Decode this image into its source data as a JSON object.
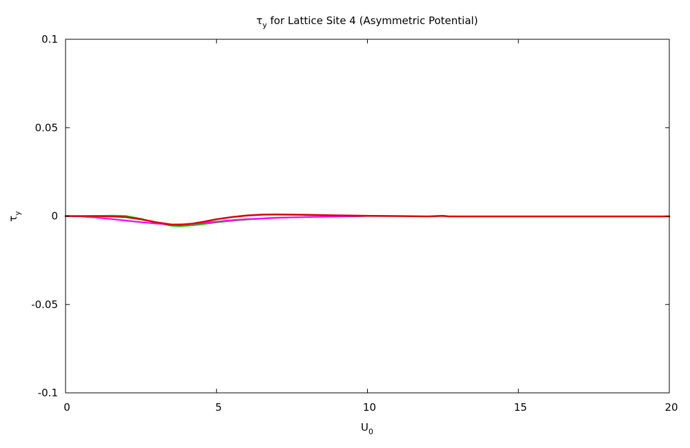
{
  "chart_data": {
    "type": "line",
    "title": {
      "main": "τ",
      "sub": "y",
      "rest": " for Lattice Site 4 (Asymmetric Potential)"
    },
    "xlabel": {
      "main": "U",
      "sub": "0"
    },
    "ylabel": {
      "main": "τ",
      "sub": "y"
    },
    "xlim": [
      0,
      20
    ],
    "ylim": [
      -0.1,
      0.1
    ],
    "xticks": [
      0,
      5,
      10,
      15,
      20
    ],
    "xtick_labels": [
      "0",
      "5",
      "10",
      "15",
      "20"
    ],
    "yticks": [
      0.1,
      0.05,
      0,
      -0.05,
      -0.1
    ],
    "ytick_labels": [
      "0.1",
      "0.05",
      "0",
      "-0.05",
      "-0.1"
    ],
    "grid": false,
    "series": [
      {
        "color": "#00cc00",
        "x": [
          0,
          0.5,
          1.0,
          1.5,
          2.0,
          2.5,
          3.0,
          3.5,
          3.8,
          4.2,
          4.6,
          5.0,
          5.5,
          6.0,
          7.0,
          8.0,
          9.0,
          10.0
        ],
        "y": [
          0,
          0,
          0.0001,
          0.0003,
          0.0001,
          -0.0015,
          -0.0038,
          -0.0055,
          -0.0057,
          -0.0053,
          -0.0045,
          -0.0036,
          -0.0027,
          -0.002,
          -0.001,
          -0.0005,
          -0.0002,
          0
        ]
      },
      {
        "color": "#6a5acd",
        "x": [
          0,
          0.5,
          1.0,
          1.5,
          2.0,
          2.5,
          3.0,
          3.5,
          4.0,
          4.5,
          5.0,
          5.5,
          6.0,
          7.0,
          8.0,
          9.0,
          10.0
        ],
        "y": [
          0,
          -0.0002,
          -0.0008,
          -0.0016,
          -0.0025,
          -0.0034,
          -0.0042,
          -0.0047,
          -0.0046,
          -0.004,
          -0.0031,
          -0.0023,
          -0.0017,
          -0.0009,
          -0.0005,
          -0.0002,
          0
        ]
      },
      {
        "color": "#ff00ff",
        "x": [
          0,
          0.5,
          1.0,
          1.5,
          2.0,
          2.5,
          3.0,
          3.5,
          4.0,
          4.5,
          5.0,
          5.5,
          6.0,
          7.0,
          8.0,
          9.0,
          10.0
        ],
        "y": [
          0,
          -0.0002,
          -0.0008,
          -0.0017,
          -0.0026,
          -0.0035,
          -0.0043,
          -0.0048,
          -0.0047,
          -0.0041,
          -0.0032,
          -0.0024,
          -0.0018,
          -0.001,
          -0.0006,
          -0.0003,
          0
        ]
      },
      {
        "color": "#dd0000",
        "x": [
          0,
          0.5,
          1.0,
          1.5,
          2.0,
          2.5,
          3.0,
          3.5,
          3.8,
          4.2,
          4.6,
          5.0,
          5.5,
          6.0,
          6.5,
          7.0,
          8.0,
          9.0,
          10.0,
          11.0,
          12.0,
          12.5,
          12.7,
          14.0,
          16.0,
          18.0,
          20.0
        ],
        "y": [
          0,
          0,
          0,
          -0.0002,
          -0.0006,
          -0.0018,
          -0.0035,
          -0.0048,
          -0.0049,
          -0.0043,
          -0.0031,
          -0.0018,
          -0.0006,
          0.0003,
          0.0008,
          0.0009,
          0.0007,
          0.0004,
          0.0001,
          0,
          -0.0002,
          0.0001,
          -0.0002,
          -0.0002,
          -0.0002,
          -0.0002,
          -0.0002
        ]
      }
    ]
  }
}
